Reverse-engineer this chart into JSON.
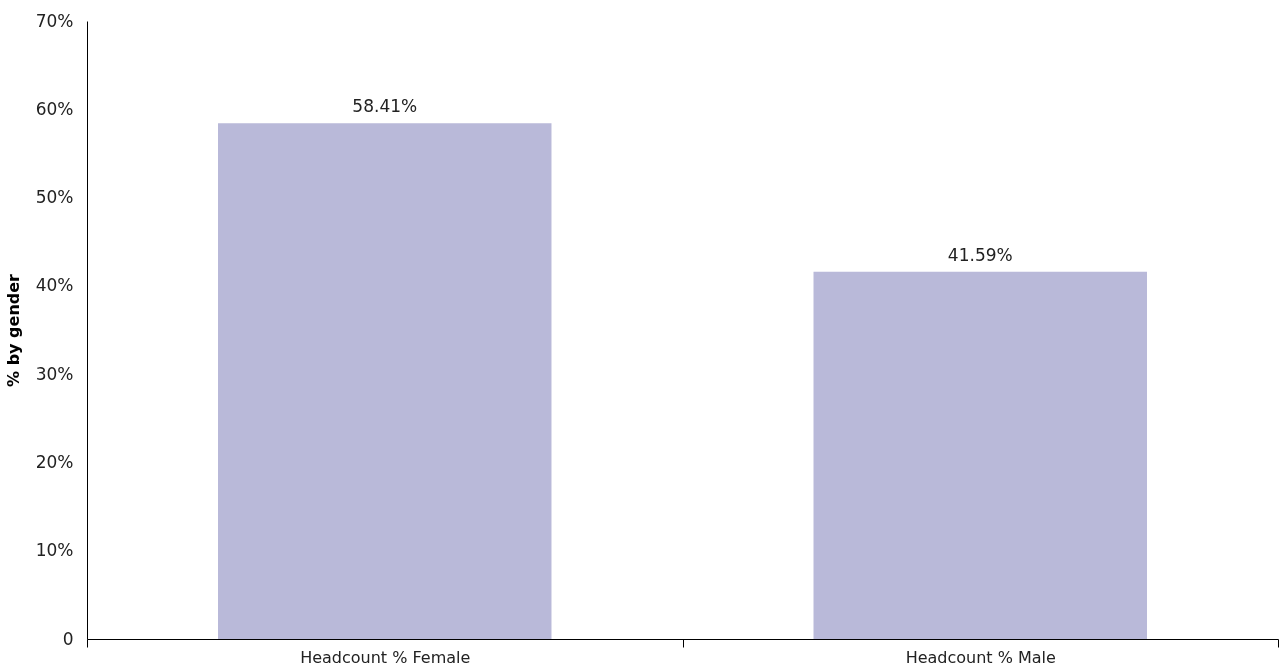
{
  "chart_data": {
    "type": "bar",
    "ylabel": "% by gender",
    "categories": [
      "Headcount % Female",
      "Headcount % Male"
    ],
    "values": [
      58.41,
      41.59
    ],
    "color": "#b9b9d9",
    "value_labels": [
      "58.41%",
      "41.59%"
    ],
    "ylim": [
      0,
      70
    ],
    "yticks": [
      0,
      {
        "value": 10,
        "label": "10%"
      },
      {
        "value": 20,
        "label": "20%"
      },
      {
        "value": 30,
        "label": "30%"
      },
      {
        "value": 40,
        "label": "40%"
      },
      {
        "value": 50,
        "label": "50%"
      },
      {
        "value": 60,
        "label": "60%"
      },
      {
        "value": 70,
        "label": "70%"
      }
    ],
    "grid": false
  }
}
